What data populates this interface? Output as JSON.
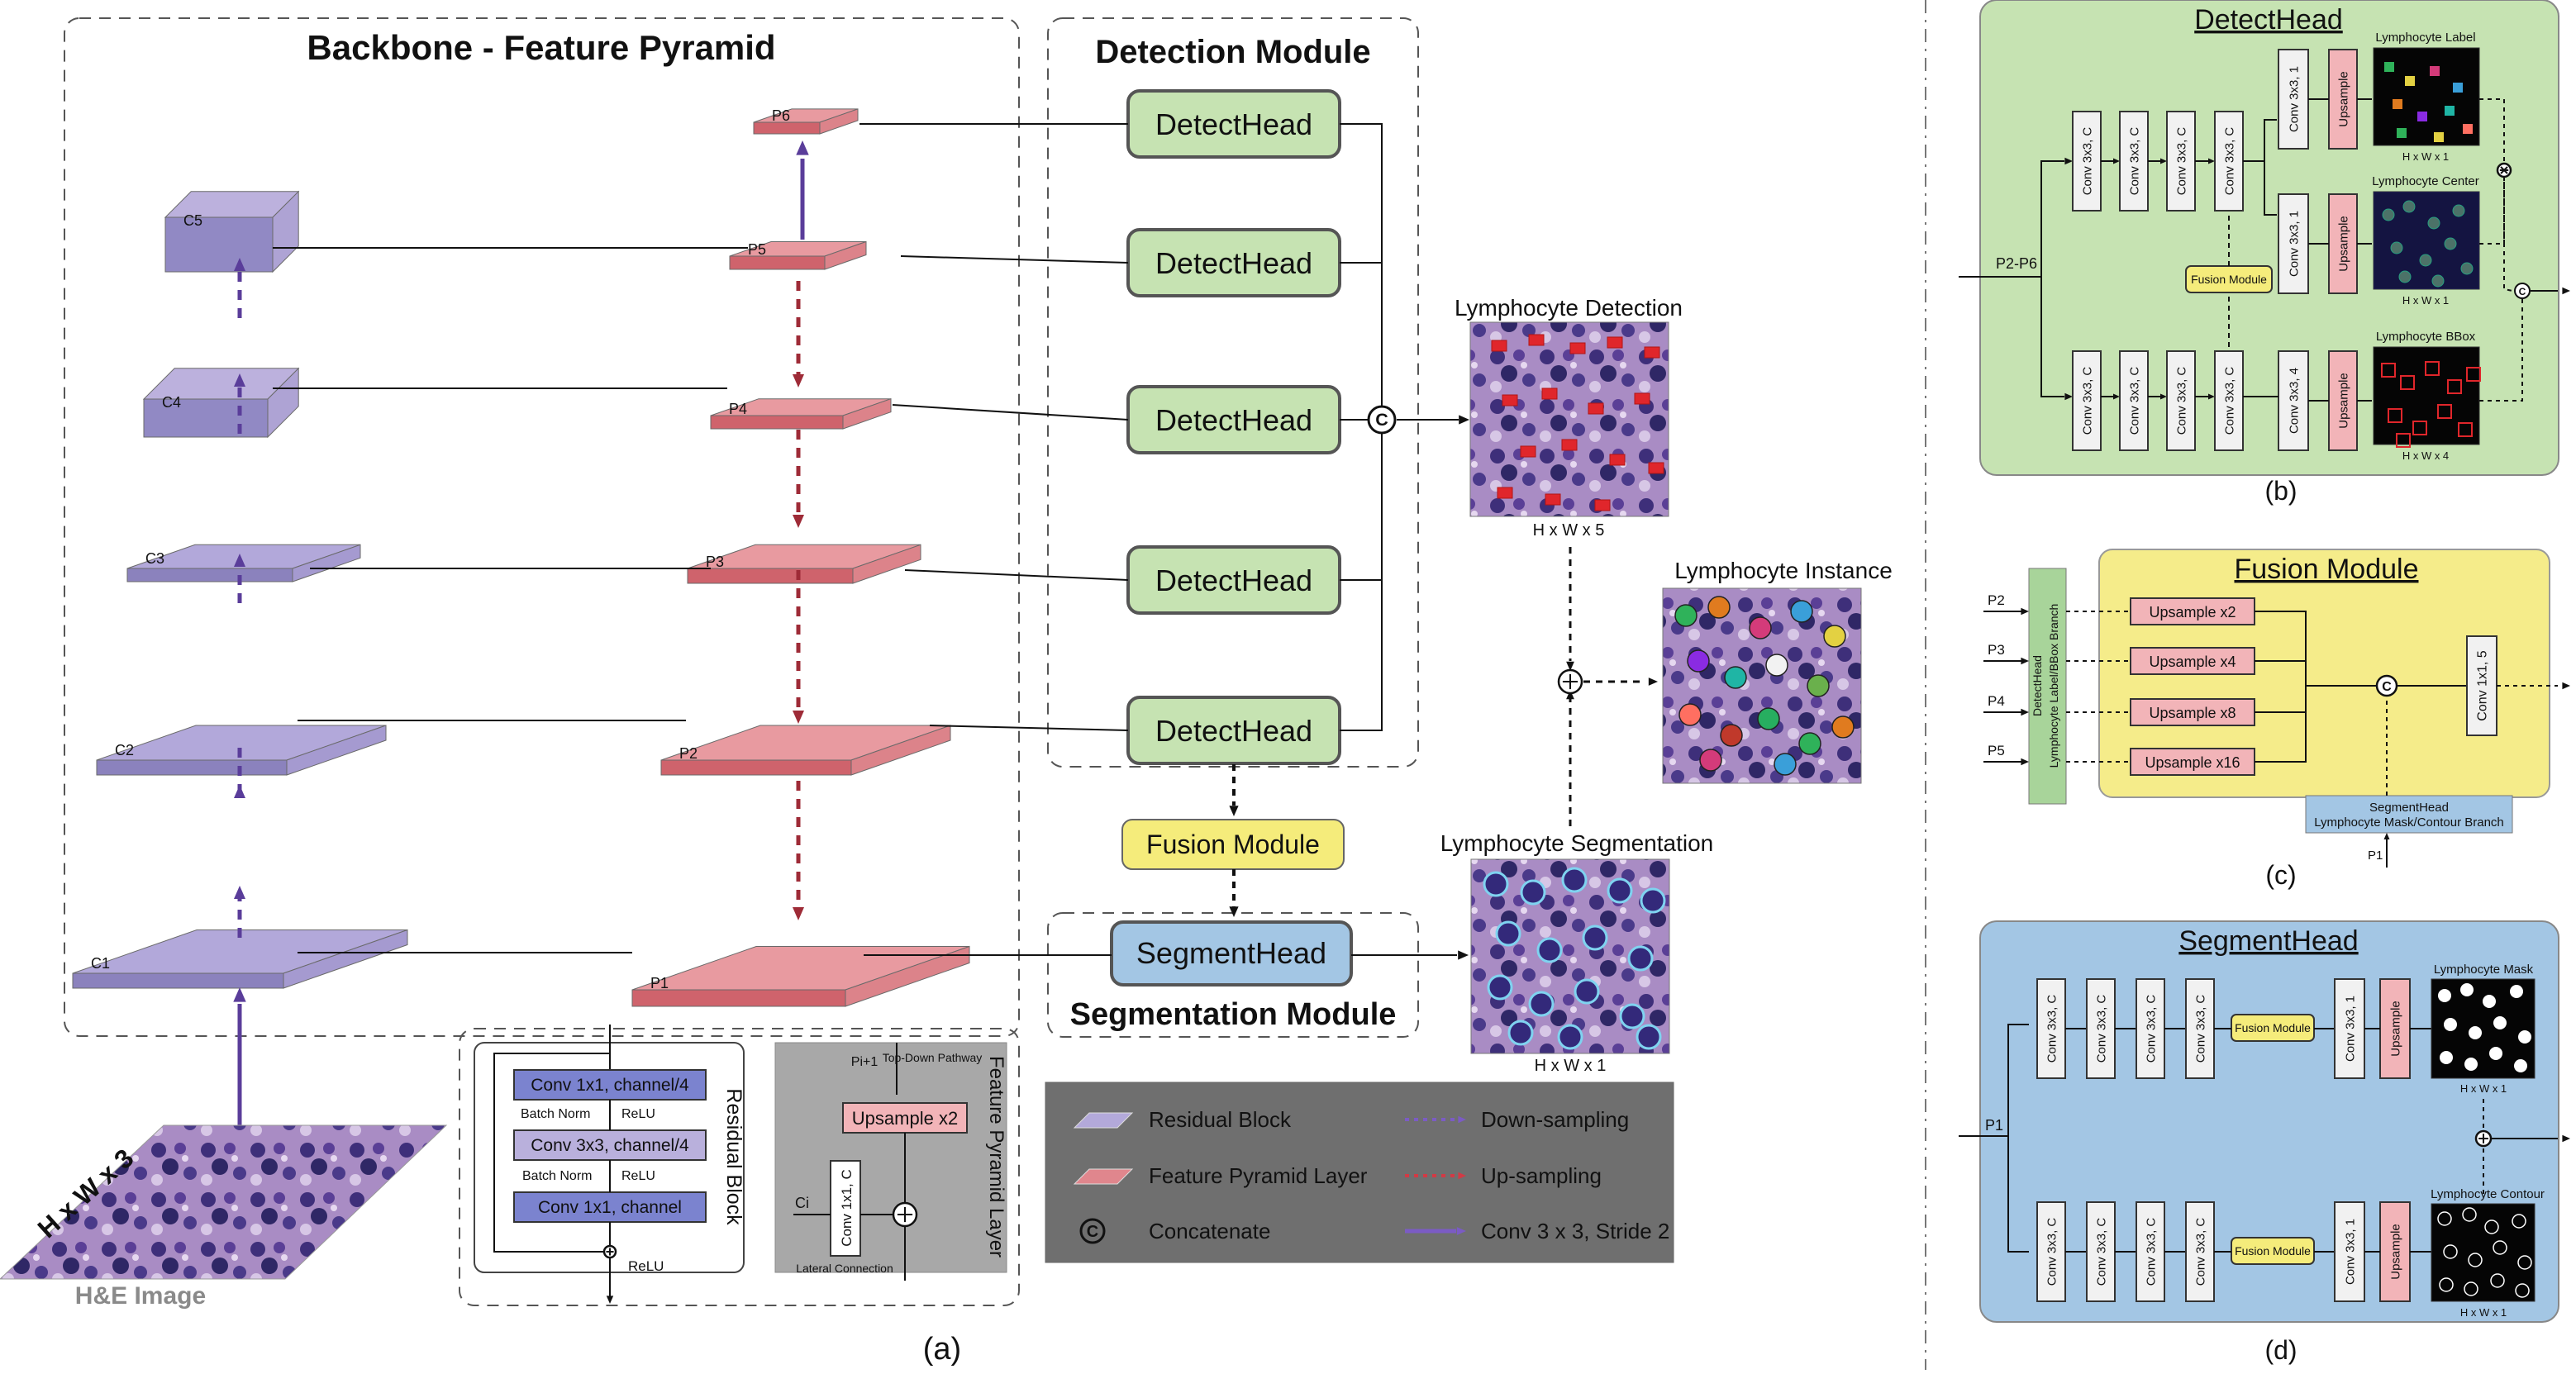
{
  "panel_a": {
    "backbone_title": "Backbone - Feature Pyramid",
    "detection_title": "Detection Module",
    "segmentation_title": "Segmentation Module",
    "residual_layers": [
      "C1",
      "C2",
      "C3",
      "C4",
      "C5"
    ],
    "pyramid_layers": [
      "P1",
      "P2",
      "P3",
      "P4",
      "P5",
      "P6"
    ],
    "detect_head_label": "DetectHead",
    "fusion_module_label": "Fusion Module",
    "segment_head_label": "SegmentHead",
    "input_size_label": "H x W x 3",
    "input_label": "H&E Image",
    "detection_output_title": "Lymphocyte Detection",
    "detection_output_size": "H x W x 5",
    "instance_output_title": "Lymphocyte Instance",
    "segmentation_output_title": "Lymphocyte Segmentation",
    "segmentation_output_size": "H x W x 1",
    "concat_symbol": "C",
    "caption": "(a)",
    "residual_block": {
      "title": "Residual Block",
      "layers": [
        "Conv 1x1, channel/4",
        "Conv 3x3, channel/4",
        "Conv 1x1, channel"
      ],
      "between": [
        "Batch Norm",
        "ReLU",
        "Batch Norm",
        "ReLU"
      ],
      "end_label": "ReLU"
    },
    "fpn_layer": {
      "title": "Feature Pyramid Layer",
      "input_top": "Pi+1",
      "pathway": "Top-Down Pathway",
      "upsample": "Upsample x2",
      "conv": "Conv 1x1, C",
      "ci": "Ci",
      "lateral": "Lateral Connection"
    },
    "legend": [
      {
        "label": "Residual Block",
        "kind": "purple-slab"
      },
      {
        "label": "Down-sampling",
        "kind": "purple-dotted"
      },
      {
        "label": "Feature Pyramid Layer",
        "kind": "red-slab"
      },
      {
        "label": "Up-sampling",
        "kind": "red-dotted"
      },
      {
        "label": "Concatenate",
        "kind": "concat"
      },
      {
        "label": "Conv 3 x 3, Stride 2",
        "kind": "purple-solid"
      }
    ]
  },
  "panel_b": {
    "title": "DetectHead",
    "input_label": "P2-P6",
    "conv_c": "Conv 3x3, C",
    "conv_1": "Conv 3x3, 1",
    "conv_4": "Conv 3x3, 4",
    "upsample": "Upsample",
    "fusion": "Fusion Module",
    "outputs": [
      {
        "title": "Lymphocyte Label",
        "size": "H x W x 1"
      },
      {
        "title": "Lymphocyte Center",
        "size": "H x W x 1"
      },
      {
        "title": "Lymphocyte BBox",
        "size": "H x W x 4"
      }
    ],
    "caption": "(b)"
  },
  "panel_c": {
    "title": "Fusion Module",
    "inputs": [
      "P2",
      "P3",
      "P4",
      "P5"
    ],
    "upsamples": [
      "Upsample x2",
      "Upsample x4",
      "Upsample x8",
      "Upsample x16"
    ],
    "detect_branch_line1": "DetectHead",
    "detect_branch_line2": "Lymphocyte Label/BBox Branch",
    "segment_branch_line1": "SegmentHead",
    "segment_branch_line2": "Lymphocyte Mask/Contour Branch",
    "p1": "P1",
    "conv": "Conv 1x1, 5",
    "caption": "(c)"
  },
  "panel_d": {
    "title": "SegmentHead",
    "input_label": "P1",
    "conv_c": "Conv 3x3, C",
    "conv_1": "Conv 3x3, 1",
    "upsample": "Upsample",
    "fusion": "Fusion Module",
    "outputs": [
      {
        "title": "Lymphocyte Mask",
        "size": "H x W x 1"
      },
      {
        "title": "Lymphocyte Contour",
        "size": "H x W x 1"
      }
    ],
    "caption": "(d)"
  },
  "colors": {
    "residual_purple": "#9b8fc4",
    "pyramid_red": "#d9727a",
    "detect_green": "#c9e5b5",
    "fusion_yellow": "#f4ec78",
    "segment_blue": "#a3c6e4",
    "upsample_pink": "#f2b4b8",
    "legend_gray": "#6d6d6d",
    "fpn_gray": "#a5a5a5"
  }
}
